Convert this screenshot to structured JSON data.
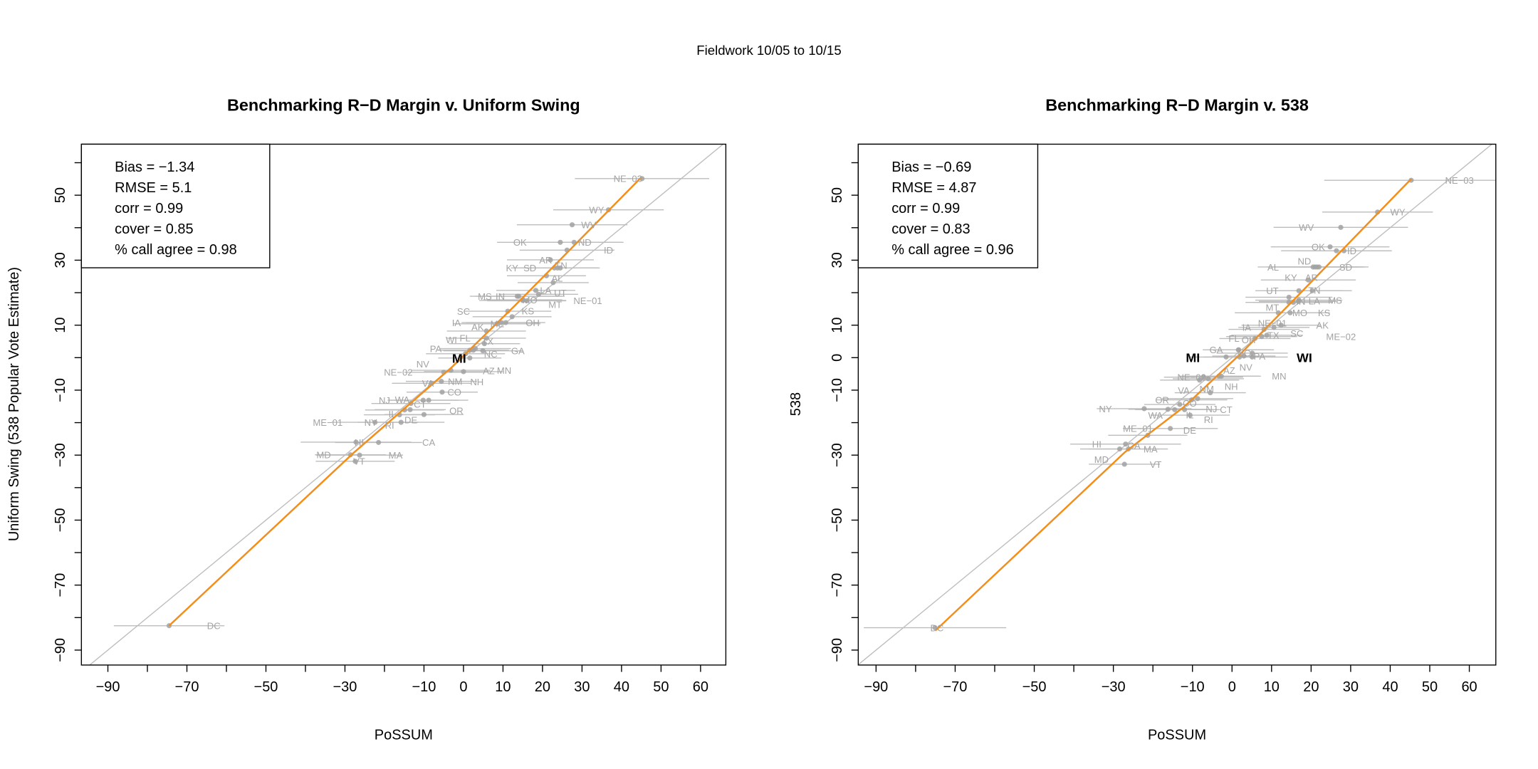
{
  "suptitle": "Fieldwork 10/05 to 10/15",
  "colors": {
    "fit": "#f28e1b",
    "point": "#a2a2a2",
    "errorbar": "#bdbdbd",
    "label": "#a3a3a3",
    "diagonal": "#bdbdbd"
  },
  "chart_data": [
    {
      "type": "scatter",
      "title": "Benchmarking R−D Margin v. Uniform Swing",
      "xlabel": "PoSSUM",
      "ylabel": "Uniform Swing  (538 Popular Vote Estimate)",
      "xlim": [
        -96.7,
        66.4
      ],
      "ylim": [
        -94.6,
        65.7
      ],
      "xticks": [
        -90,
        -80,
        -70,
        -60,
        -50,
        -40,
        -30,
        -20,
        -10,
        0,
        10,
        20,
        30,
        40,
        50,
        60
      ],
      "xtick_labels": [
        "−90",
        "−70",
        "−50",
        "−30",
        "−10",
        "0",
        "10",
        "20",
        "30",
        "40",
        "50",
        "60"
      ],
      "xtick_label_values": [
        -90,
        -70,
        -50,
        -30,
        -10,
        0,
        10,
        20,
        30,
        40,
        50,
        60
      ],
      "yticks": [
        -90,
        -80,
        -70,
        -60,
        -50,
        -40,
        -30,
        -20,
        -10,
        0,
        10,
        20,
        30,
        40,
        50,
        60
      ],
      "ytick_labels": [
        "−90",
        "−70",
        "−50",
        "−30",
        "−10",
        "10",
        "30",
        "50"
      ],
      "ytick_label_values": [
        -90,
        -70,
        -50,
        -30,
        -10,
        10,
        30,
        50
      ],
      "stats": [
        "Bias = −1.34",
        "RMSE = 5.1",
        "corr = 0.99",
        "cover = 0.85",
        "% call agree = 0.98"
      ],
      "highlight": [
        "MI"
      ],
      "reference_line": "y = x",
      "fit_line": [
        [
          -74.5,
          -82.5
        ],
        [
          -28,
          -29.5
        ],
        [
          -3,
          -3
        ],
        [
          13,
          16
        ],
        [
          45,
          55.5
        ]
      ],
      "point_fields": [
        "label",
        "x",
        "y",
        "xerr",
        "label_x"
      ],
      "points": [
        [
          "NE−03",
          45.2,
          55.1,
          17,
          41.6
        ],
        [
          "WY",
          36.7,
          45.5,
          14,
          33.7
        ],
        [
          "WV",
          27.5,
          40.9,
          14,
          31.7
        ],
        [
          "OK",
          24.5,
          35.5,
          16,
          14.3
        ],
        [
          "ND",
          28,
          35.5,
          12,
          30.7
        ],
        [
          "ID",
          26.2,
          33.1,
          12,
          36.7
        ],
        [
          "AR",
          22,
          30.1,
          11,
          20.8
        ],
        [
          "KY",
          23,
          27.6,
          11,
          12.3
        ],
        [
          "SD",
          23.8,
          27.6,
          10,
          16.8
        ],
        [
          "AL",
          24.5,
          27.6,
          10,
          23.7
        ],
        [
          "TN",
          21,
          25.2,
          10,
          24.7
        ],
        [
          "UT",
          22.7,
          23.1,
          9,
          24.5
        ],
        [
          "LA",
          18.3,
          20.7,
          10,
          20.8
        ],
        [
          "MT",
          19,
          19.5,
          10,
          23.2
        ],
        [
          "MS",
          13.6,
          18.9,
          12,
          5.4
        ],
        [
          "IN",
          14,
          18.9,
          11,
          9.3
        ],
        [
          "MO",
          15,
          17.8,
          10,
          16.8
        ],
        [
          "KS",
          16,
          17.5,
          10,
          16.3
        ],
        [
          "NE−01",
          15,
          17.6,
          11,
          26
        ],
        [
          "SC",
          11.2,
          14.3,
          11,
          0
        ],
        [
          "AK",
          12.3,
          12.6,
          10,
          3.6
        ],
        [
          "IA",
          10.7,
          10.8,
          10,
          -1.8
        ],
        [
          "ME",
          8.5,
          10.4,
          11,
          3.1
        ],
        [
          "OH",
          9.5,
          10.8,
          10,
          17.5
        ],
        [
          "TX",
          5.8,
          8.2,
          10,
          6.1
        ],
        [
          "FL",
          5.8,
          6.0,
          10,
          0.4
        ],
        [
          "NC",
          5.3,
          4.3,
          9,
          6.9
        ],
        [
          "GA",
          4.9,
          2.1,
          10,
          8.3
        ],
        [
          "AZ",
          2.5,
          2.3,
          9,
          6.4
        ],
        [
          "WI",
          1.6,
          2.3,
          8,
          2.4
        ],
        [
          "PA",
          3,
          2.8,
          9,
          3.9
        ],
        [
          "NV",
          0.5,
          1.2,
          10,
          -10.3
        ],
        [
          "MI",
          1.6,
          -0.1,
          8,
          -1.1
        ],
        [
          "NH",
          0,
          -4.3,
          10,
          3.4
        ],
        [
          "MN",
          -3.2,
          -3.9,
          10,
          10.3
        ],
        [
          "NE−02",
          -5,
          -4.5,
          10,
          -16.5
        ],
        [
          "VA",
          -8.1,
          -7.9,
          10,
          -9
        ],
        [
          "NM",
          -5.6,
          -7.3,
          9,
          -2.1
        ],
        [
          "CO",
          -5.4,
          -10.6,
          9,
          -2.3
        ],
        [
          "OR",
          -8.8,
          -13.1,
          10,
          -1.8
        ],
        [
          "NJ",
          -10.2,
          -13.1,
          9,
          -20
        ],
        [
          "IL",
          -13.3,
          -14.1,
          10,
          -18
        ],
        [
          "WA",
          -14.9,
          -16.1,
          10,
          -15.5
        ],
        [
          "DE",
          -13.5,
          -16,
          9,
          -13.3
        ],
        [
          "CT",
          -10,
          -17.5,
          10,
          -11
        ],
        [
          "RI",
          -16.2,
          -17.6,
          9,
          -18.7
        ],
        [
          "NY",
          -15.8,
          -19.9,
          11,
          -18
        ],
        [
          "ME−01",
          -22.4,
          -19.9,
          11,
          -28.9
        ],
        [
          "HI",
          -27.2,
          -26,
          14,
          -26.4
        ],
        [
          "CA",
          -21.5,
          -26.1,
          11,
          -8.8
        ],
        [
          "MD",
          -28.6,
          -29.9,
          9,
          -35.4
        ],
        [
          "MA",
          -26.3,
          -30,
          11,
          -17.2
        ],
        [
          "VT",
          -27.4,
          -31.9,
          10,
          -26.4
        ],
        [
          "DC",
          -74.5,
          -82.5,
          14,
          -63.2
        ]
      ]
    },
    {
      "type": "scatter",
      "title": "Benchmarking R−D Margin v. 538",
      "xlabel": "PoSSUM",
      "ylabel": "538",
      "xlim": [
        -94.5,
        66.7
      ],
      "ylim": [
        -94.6,
        65.7
      ],
      "xticks": [
        -90,
        -80,
        -70,
        -60,
        -50,
        -40,
        -30,
        -20,
        -10,
        0,
        10,
        20,
        30,
        40,
        50,
        60
      ],
      "xtick_labels": [
        "−90",
        "−70",
        "−50",
        "−30",
        "−10",
        "0",
        "10",
        "20",
        "30",
        "40",
        "50",
        "60"
      ],
      "xtick_label_values": [
        -90,
        -70,
        -50,
        -30,
        -10,
        0,
        10,
        20,
        30,
        40,
        50,
        60
      ],
      "yticks": [
        -90,
        -80,
        -70,
        -60,
        -50,
        -40,
        -30,
        -20,
        -10,
        0,
        10,
        20,
        30,
        40,
        50,
        60
      ],
      "ytick_labels": [
        "−90",
        "−70",
        "−50",
        "−30",
        "−10",
        "0",
        "10",
        "30",
        "50"
      ],
      "ytick_label_values": [
        -90,
        -70,
        -50,
        -30,
        -10,
        0,
        10,
        30,
        50
      ],
      "stats": [
        "Bias = −0.69",
        "RMSE = 4.87",
        "corr = 0.99",
        "cover = 0.83",
        "% call agree = 0.96"
      ],
      "highlight": [
        "MI",
        "WI"
      ],
      "reference_line": "y = x",
      "fit_line": [
        [
          -75,
          -84
        ],
        [
          -27,
          -29
        ],
        [
          -12,
          -15
        ],
        [
          2,
          1
        ],
        [
          15,
          17
        ],
        [
          45.3,
          55
        ]
      ],
      "point_fields": [
        "label",
        "x",
        "y",
        "xerr",
        "label_x"
      ],
      "points": [
        [
          "NE−03",
          45.3,
          54.6,
          22,
          57.5
        ],
        [
          "WY",
          36.8,
          44.8,
          14,
          41.9
        ],
        [
          "WV",
          27.5,
          40.1,
          17,
          18.8
        ],
        [
          "OK",
          24.8,
          34.1,
          15,
          21.8
        ],
        [
          "ND",
          26.4,
          32.9,
          14,
          18.3
        ],
        [
          "ID",
          28.3,
          32.9,
          12,
          30.3
        ],
        [
          "AL",
          20.5,
          27.9,
          14,
          10.4
        ],
        [
          "KY",
          21,
          27.9,
          12,
          14.9
        ],
        [
          "AR",
          21.5,
          27.9,
          12,
          20.1
        ],
        [
          "SD",
          22,
          27.9,
          10,
          23.3
        ],
        [
          "TN",
          19.3,
          23.9,
          12,
          20.8
        ],
        [
          "LA",
          20.3,
          20.6,
          10,
          20.8
        ],
        [
          "UT",
          16.9,
          20.6,
          11,
          10.2
        ],
        [
          "MS",
          16.9,
          17.7,
          11,
          20.6
        ],
        [
          "MT",
          14.4,
          18.6,
          11,
          10.2
        ],
        [
          "NE−01",
          14.4,
          17,
          11,
          10.2
        ],
        [
          "IN",
          16.8,
          17.3,
          10,
          17.4
        ],
        [
          "KS",
          15.5,
          17,
          10,
          23.3
        ],
        [
          "MO",
          11.7,
          13.8,
          11,
          11.7
        ],
        [
          "SC",
          14.7,
          13.8,
          10,
          16.4
        ],
        [
          "AK",
          12.4,
          10,
          10,
          17.4
        ],
        [
          "IA",
          10.6,
          9.3,
          9,
          3.7
        ],
        [
          "OH",
          8.1,
          8.7,
          9,
          4.2
        ],
        [
          "TX",
          8.8,
          6.9,
          9,
          15.9
        ],
        [
          "ME−02",
          7.5,
          6.5,
          9,
          22.1
        ],
        [
          "FL",
          5.8,
          5.9,
          9,
          0.5
        ],
        [
          "GA",
          1.6,
          2.4,
          9,
          -4
        ],
        [
          "AZ",
          1.7,
          2.4,
          8,
          -0.7
        ],
        [
          "NC",
          5.1,
          1.4,
          9,
          3
        ],
        [
          "NV",
          5.1,
          0.2,
          9,
          3.5
        ],
        [
          "PA",
          3,
          0.5,
          8,
          1.5
        ],
        [
          "MI",
          -1.5,
          0.2,
          9,
          -9.9
        ],
        [
          "WI",
          1.9,
          0.2,
          9,
          18.3
        ],
        [
          "MN",
          -3.3,
          -5.7,
          10,
          11.9
        ],
        [
          "NH",
          -2.7,
          -5.7,
          10,
          -0.2
        ],
        [
          "NE−02",
          -7.2,
          -6,
          10,
          -10.2
        ],
        [
          "VA",
          -8.2,
          -6.9,
          10,
          -12.2
        ],
        [
          "NM",
          -6,
          -6.5,
          9,
          -6.4
        ],
        [
          "CO",
          -5.5,
          -10.8,
          9,
          -10.7
        ],
        [
          "NJ",
          -8.7,
          -12.6,
          9,
          -5.2
        ],
        [
          "OR",
          -10.2,
          -13,
          9,
          -12.2
        ],
        [
          "IL",
          -13.2,
          -14.4,
          9,
          -10.7
        ],
        [
          "DE",
          -12,
          -16,
          9,
          -10.7
        ],
        [
          "RI",
          -16.2,
          -15.9,
          10,
          -11.4
        ],
        [
          "NY",
          -22.2,
          -15.7,
          12,
          -32
        ],
        [
          "CT",
          -14.5,
          -16,
          10,
          -1.5
        ],
        [
          "WA",
          -10.6,
          -17.7,
          10,
          -13.9
        ],
        [
          "ME−01",
          -15.6,
          -21.8,
          12,
          -23.8
        ],
        [
          "CA",
          -21.3,
          -23.9,
          10,
          -24.8
        ],
        [
          "HI",
          -26.9,
          -26.6,
          14,
          -34.2
        ],
        [
          "MD",
          -28.4,
          -28.1,
          10,
          -33
        ],
        [
          "MA",
          -26.2,
          -28.1,
          10,
          -20.6
        ],
        [
          "VT",
          -27.2,
          -32.8,
          9,
          -19.3
        ],
        [
          "DC",
          -75.1,
          -83.1,
          18,
          -74.6
        ]
      ]
    }
  ]
}
